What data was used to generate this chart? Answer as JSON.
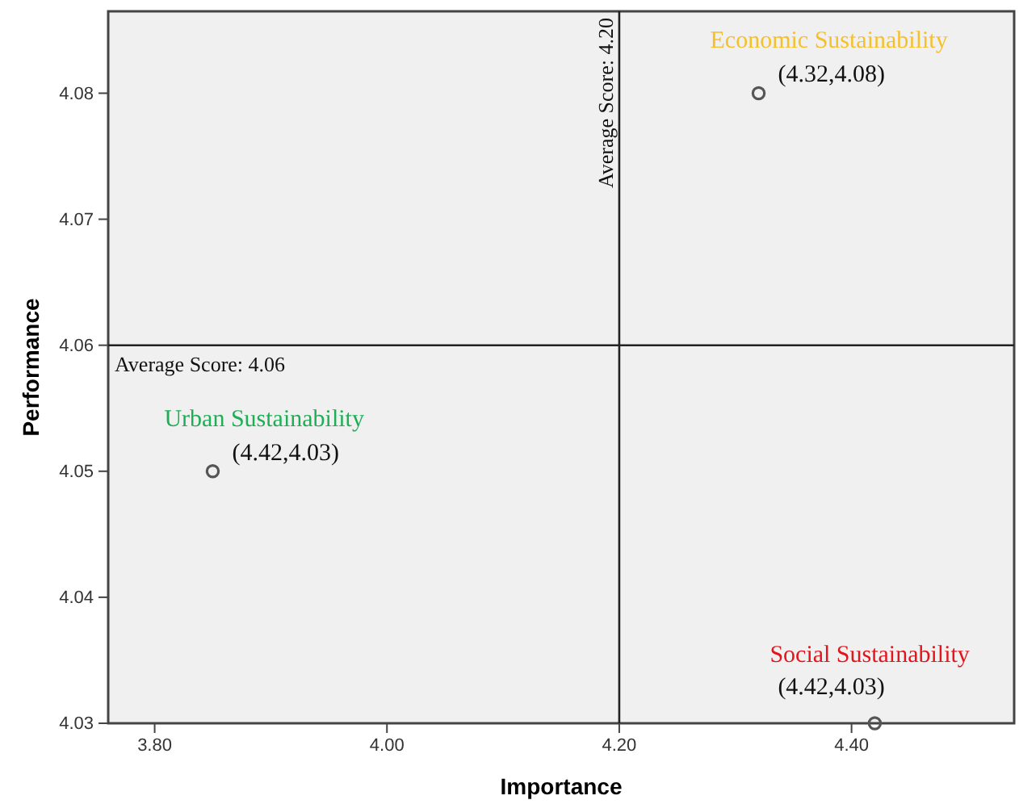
{
  "chart_data": {
    "type": "scatter",
    "xlabel": "Importance",
    "ylabel": "Performance",
    "x": [
      4.32,
      3.85,
      4.42
    ],
    "values": [
      4.08,
      4.05,
      4.03
    ],
    "color": "#555555",
    "marker": "circle",
    "xlim": [
      3.76,
      4.54
    ],
    "xticks": [
      {
        "value": 3.8,
        "label": "3.80"
      },
      {
        "value": 4.0,
        "label": "4.00"
      },
      {
        "value": 4.2,
        "label": "4.20"
      },
      {
        "value": 4.4,
        "label": "4.40"
      }
    ],
    "ylim": [
      4.03,
      4.0865
    ],
    "yticks": [
      4.03,
      4.04,
      4.05,
      4.06,
      4.07,
      4.08
    ],
    "ref_lines": [
      {
        "axis": "x",
        "value": 4.2,
        "label": "Average Score: 4.20"
      },
      {
        "axis": "y",
        "value": 4.06,
        "label": "Average Score: 4.06"
      }
    ],
    "annotations": [
      {
        "text": "Economic Sustainability",
        "x": 4.32,
        "y": 4.08
      },
      {
        "text": "(4.32,4.08)",
        "x": 4.32,
        "y": 4.08
      },
      {
        "text": "Urban Sustainability",
        "x": 3.85,
        "y": 4.05
      },
      {
        "text": "(4.42,4.03)",
        "x": 3.85,
        "y": 4.05
      },
      {
        "text": "Social Sustainability",
        "x": 4.42,
        "y": 4.03
      },
      {
        "text": "(4.42,4.03)",
        "x": 4.42,
        "y": 4.03
      }
    ],
    "grid": false
  }
}
